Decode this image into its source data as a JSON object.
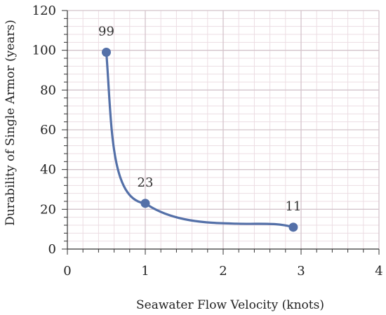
{
  "chart_data": {
    "type": "scatter",
    "title": "",
    "xlabel": "Seawater Flow Velocity (knots)",
    "ylabel": "Durability of Single Armor (years)",
    "xlim": [
      0,
      4
    ],
    "ylim": [
      0,
      120
    ],
    "x_ticks": [
      0,
      1,
      2,
      3,
      4
    ],
    "y_ticks": [
      0,
      20,
      40,
      60,
      80,
      100,
      120
    ],
    "grid": true,
    "smooth_line": true,
    "series": [
      {
        "name": "",
        "color": "#5470a8",
        "points": [
          {
            "x": 0.5,
            "y": 99,
            "label": "99"
          },
          {
            "x": 1.0,
            "y": 23,
            "label": "23"
          },
          {
            "x": 2.9,
            "y": 11,
            "label": "11"
          }
        ]
      }
    ]
  }
}
